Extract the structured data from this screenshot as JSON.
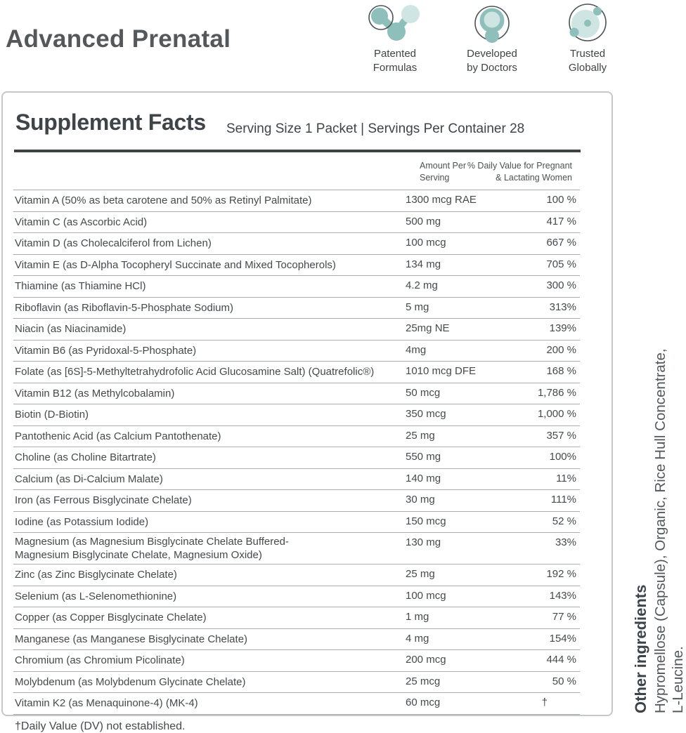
{
  "header": {
    "title": "Advanced Prenatal",
    "badges": [
      {
        "icon": "molecule-icon",
        "label": "Patented\nFormulas"
      },
      {
        "icon": "cell-ring-icon",
        "label": "Developed\nby Doctors"
      },
      {
        "icon": "globe-cell-icon",
        "label": "Trusted\nGlobally"
      }
    ]
  },
  "panel": {
    "title": "Supplement Facts",
    "serving_info": "Serving Size 1 Packet | Servings Per Container 28",
    "columns": {
      "amount": "Amount Per\nServing",
      "dv": "% Daily Value for Pregnant\n& Lactating Women"
    },
    "rows": [
      {
        "name": "Vitamin A (50% as beta carotene and 50% as Retinyl Palmitate)",
        "amount": "1300 mcg RAE",
        "dv": "100 %"
      },
      {
        "name": "Vitamin C (as Ascorbic Acid)",
        "amount": "500 mg",
        "dv": "417 %"
      },
      {
        "name": "Vitamin D (as Cholecalciferol from Lichen)",
        "amount": "100 mcg",
        "dv": "667 %"
      },
      {
        "name": "Vitamin E (as D-Alpha Tocopheryl Succinate and Mixed Tocopherols)",
        "amount": "134 mg",
        "dv": "705 %"
      },
      {
        "name": "Thiamine (as Thiamine HCl)",
        "amount": "4.2 mg",
        "dv": "300 %"
      },
      {
        "name": "Riboflavin (as Riboflavin-5-Phosphate Sodium)",
        "amount": "5 mg",
        "dv": "313%"
      },
      {
        "name": "Niacin (as Niacinamide)",
        "amount": "25mg NE",
        "dv": "139%"
      },
      {
        "name": "Vitamin B6 (as Pyridoxal-5-Phosphate)",
        "amount": "4mg",
        "dv": "200 %"
      },
      {
        "name": "Folate (as [6S]-5-Methyltetrahydrofolic Acid Glucosamine Salt) (Quatrefolic®)",
        "amount": "1010 mcg DFE",
        "dv": "168 %"
      },
      {
        "name": "Vitamin B12 (as Methylcobalamin)",
        "amount": "50 mcg",
        "dv": "1,786 %"
      },
      {
        "name": "Biotin (D-Biotin)",
        "amount": "350 mcg",
        "dv": "1,000 %"
      },
      {
        "name": "Pantothenic Acid (as Calcium Pantothenate)",
        "amount": "25 mg",
        "dv": "357 %"
      },
      {
        "name": "Choline (as Choline Bitartrate)",
        "amount": "550 mg",
        "dv": "100%"
      },
      {
        "name": "Calcium (as Di-Calcium Malate)",
        "amount": "140 mg",
        "dv": "11%"
      },
      {
        "name": "Iron (as Ferrous Bisglycinate Chelate)",
        "amount": "30 mg",
        "dv": "111%"
      },
      {
        "name": "Iodine (as Potassium Iodide)",
        "amount": "150 mcg",
        "dv": "52 %"
      },
      {
        "name": "Magnesium (as Magnesium Bisglycinate Chelate Buffered-\nMagnesium Bisglycinate Chelate, Magnesium Oxide)",
        "amount": "130 mg",
        "dv": "33%"
      },
      {
        "name": "Zinc (as Zinc Bisglycinate Chelate)",
        "amount": "25 mg",
        "dv": "192 %"
      },
      {
        "name": "Selenium (as L-Selenomethionine)",
        "amount": "100 mcg",
        "dv": "143%"
      },
      {
        "name": "Copper (as Copper Bisglycinate Chelate)",
        "amount": "1 mg",
        "dv": "77 %"
      },
      {
        "name": "Manganese (as Manganese Bisglycinate Chelate)",
        "amount": "4 mg",
        "dv": "154%"
      },
      {
        "name": "Chromium (as Chromium Picolinate)",
        "amount": "200 mcg",
        "dv": "444 %"
      },
      {
        "name": "Molybdenum (as Molybdenum Glycinate Chelate)",
        "amount": "25 mcg",
        "dv": "50 %"
      },
      {
        "name": "Vitamin K2 (as Menaquinone-4) (MK-4)",
        "amount": "60 mcg",
        "dv": "†"
      }
    ],
    "footnote": "†Daily Value (DV) not established."
  },
  "other_ingredients": {
    "heading": "Other ingredients",
    "text": "Hypromellose (Capsule), Organic, Rice Hull Concentrate,\nL-Leucine."
  },
  "colors": {
    "teal_medium": "#8ebfbb",
    "teal_light": "#cfe5e3",
    "outline_gray": "#4b5254",
    "text_dark": "#3e4347",
    "rule_dark": "#3c4144",
    "rule_light": "#aaadae"
  }
}
